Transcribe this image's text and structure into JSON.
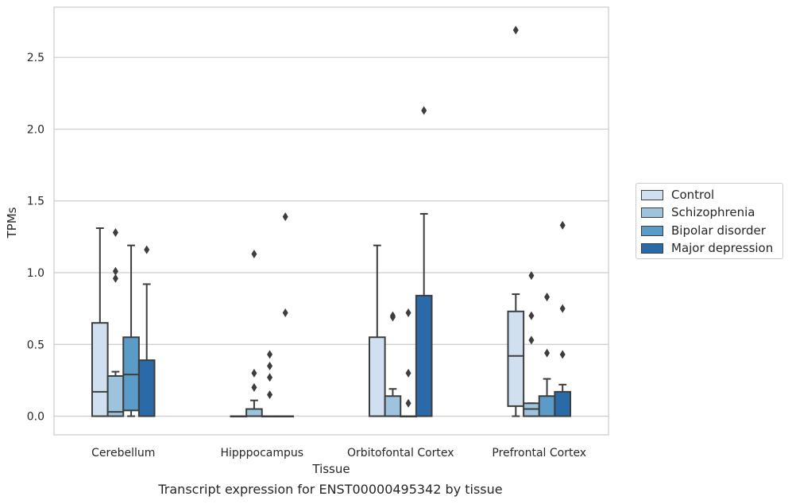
{
  "chart_data": {
    "type": "box",
    "title": "",
    "caption": "Transcript expression for ENST00000495342 by tissue",
    "xlabel": "Tissue",
    "ylabel": "TPMs",
    "ylim": [
      -0.13,
      2.85
    ],
    "yticks": [
      0.0,
      0.5,
      1.0,
      1.5,
      2.0,
      2.5
    ],
    "ytick_labels": [
      "0.0",
      "0.5",
      "1.0",
      "1.5",
      "2.0",
      "2.5"
    ],
    "grid": "horizontal",
    "legend_position": "right",
    "categories": [
      "Cerebellum",
      "Hipppocampus",
      "Orbitofontal Cortex",
      "Prefrontal Cortex"
    ],
    "series": [
      {
        "name": "Control",
        "color": "#d0e0f0",
        "boxes": [
          {
            "category": "Cerebellum",
            "q1": 0.0,
            "median": 0.17,
            "q3": 0.65,
            "whisker_low": 0.0,
            "whisker_high": 1.31,
            "outliers": []
          },
          {
            "category": "Hipppocampus",
            "q1": 0.0,
            "median": 0.0,
            "q3": 0.0,
            "whisker_low": 0.0,
            "whisker_high": 0.0,
            "outliers": []
          },
          {
            "category": "Orbitofontal Cortex",
            "q1": 0.0,
            "median": 0.0,
            "q3": 0.55,
            "whisker_low": 0.0,
            "whisker_high": 1.19,
            "outliers": []
          },
          {
            "category": "Prefrontal Cortex",
            "q1": 0.07,
            "median": 0.42,
            "q3": 0.73,
            "whisker_low": 0.0,
            "whisker_high": 0.85,
            "outliers": [
              2.69
            ]
          }
        ]
      },
      {
        "name": "Schizophrenia",
        "color": "#9dc3dd",
        "boxes": [
          {
            "category": "Cerebellum",
            "q1": 0.0,
            "median": 0.03,
            "q3": 0.28,
            "whisker_low": 0.0,
            "whisker_high": 0.31,
            "outliers": [
              1.28,
              1.01,
              0.96
            ]
          },
          {
            "category": "Hipppocampus",
            "q1": 0.0,
            "median": 0.0,
            "q3": 0.05,
            "whisker_low": 0.0,
            "whisker_high": 0.11,
            "outliers": [
              1.13,
              0.3,
              0.2
            ]
          },
          {
            "category": "Orbitofontal Cortex",
            "q1": 0.0,
            "median": 0.0,
            "q3": 0.14,
            "whisker_low": 0.0,
            "whisker_high": 0.19,
            "outliers": [
              0.7,
              0.69
            ]
          },
          {
            "category": "Prefrontal Cortex",
            "q1": 0.0,
            "median": 0.05,
            "q3": 0.09,
            "whisker_low": 0.0,
            "whisker_high": 0.09,
            "outliers": [
              0.98,
              0.7,
              0.53
            ]
          }
        ]
      },
      {
        "name": "Bipolar disorder",
        "color": "#5b9bc8",
        "boxes": [
          {
            "category": "Cerebellum",
            "q1": 0.04,
            "median": 0.29,
            "q3": 0.55,
            "whisker_low": 0.0,
            "whisker_high": 1.19,
            "outliers": []
          },
          {
            "category": "Hipppocampus",
            "q1": 0.0,
            "median": 0.0,
            "q3": 0.0,
            "whisker_low": 0.0,
            "whisker_high": 0.0,
            "outliers": [
              0.43,
              0.35,
              0.27,
              0.15
            ]
          },
          {
            "category": "Orbitofontal Cortex",
            "q1": 0.0,
            "median": 0.0,
            "q3": 0.0,
            "whisker_low": 0.0,
            "whisker_high": 0.0,
            "outliers": [
              0.72,
              0.3,
              0.09
            ]
          },
          {
            "category": "Prefrontal Cortex",
            "q1": 0.0,
            "median": 0.0,
            "q3": 0.14,
            "whisker_low": 0.0,
            "whisker_high": 0.26,
            "outliers": [
              0.83,
              0.44
            ]
          }
        ]
      },
      {
        "name": "Major depression",
        "color": "#2b6aa8",
        "boxes": [
          {
            "category": "Cerebellum",
            "q1": 0.0,
            "median": 0.0,
            "q3": 0.39,
            "whisker_low": 0.0,
            "whisker_high": 0.92,
            "outliers": [
              1.16
            ]
          },
          {
            "category": "Hipppocampus",
            "q1": 0.0,
            "median": 0.0,
            "q3": 0.0,
            "whisker_low": 0.0,
            "whisker_high": 0.0,
            "outliers": [
              1.39,
              0.72
            ]
          },
          {
            "category": "Orbitofontal Cortex",
            "q1": 0.0,
            "median": 0.0,
            "q3": 0.84,
            "whisker_low": 0.0,
            "whisker_high": 1.41,
            "outliers": [
              2.13
            ]
          },
          {
            "category": "Prefrontal Cortex",
            "q1": 0.0,
            "median": 0.0,
            "q3": 0.17,
            "whisker_low": 0.0,
            "whisker_high": 0.22,
            "outliers": [
              1.33,
              0.75,
              0.43
            ]
          }
        ]
      }
    ]
  }
}
